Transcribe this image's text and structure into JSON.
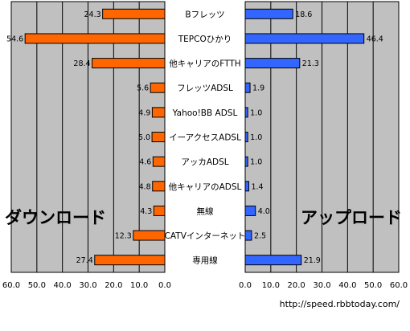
{
  "chart_data": {
    "type": "bar",
    "orientation": "horizontal-butterfly",
    "categories": [
      "Bフレッツ",
      "TEPCOひかり",
      "他キャリアのFTTH",
      "フレッツADSL",
      "Yahoo!BB ADSL",
      "イーアクセスADSL",
      "アッカADSL",
      "他キャリアのADSL",
      "無線",
      "CATVインターネット",
      "専用線"
    ],
    "series": [
      {
        "name": "ダウンロード",
        "side": "left",
        "color": "#ff6600",
        "values": [
          24.3,
          54.6,
          28.4,
          5.6,
          4.9,
          5.0,
          4.6,
          4.8,
          4.3,
          12.3,
          27.4
        ],
        "labels": [
          "24.3",
          "54.6",
          "28.4",
          "5.6",
          "4.9",
          "5.0",
          "4.6",
          "4.8",
          "4.3",
          "12.3",
          "27.4"
        ]
      },
      {
        "name": "アップロード",
        "side": "right",
        "color": "#3366ff",
        "values": [
          18.6,
          46.4,
          21.3,
          1.9,
          1.0,
          1.0,
          1.0,
          1.4,
          4.0,
          2.5,
          21.9
        ],
        "labels": [
          "18.6",
          "46.4",
          "21.3",
          "1.9",
          "1.0",
          "1.0",
          "1.0",
          "1.4",
          "4.0",
          "2.5",
          "21.9"
        ]
      }
    ],
    "xlim": [
      0,
      60
    ],
    "left_ticks": [
      "60.0",
      "50.0",
      "40.0",
      "30.0",
      "20.0",
      "10.0",
      "0.0"
    ],
    "right_ticks": [
      "0.0",
      "10.0",
      "20.0",
      "30.0",
      "40.0",
      "50.0",
      "60.0"
    ],
    "grid": true,
    "plot_background": "#c0c0c0",
    "source_note": "http://speed.rbbtoday.com/"
  }
}
